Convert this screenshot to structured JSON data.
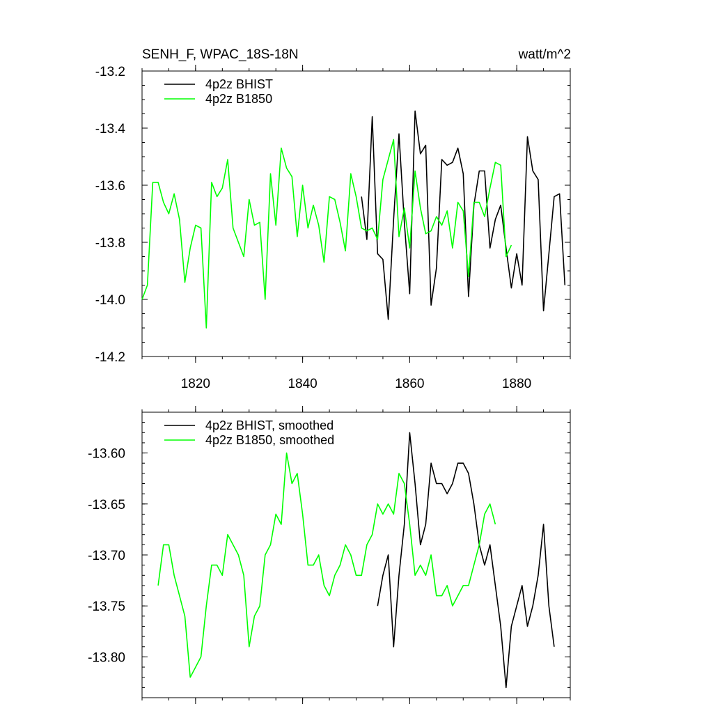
{
  "chart_data": [
    {
      "type": "line",
      "title": "SENH_F, WPAC_18S-18N",
      "units": "watt/m^2",
      "xlim": [
        1810,
        1890
      ],
      "ylim": [
        -14.2,
        -13.2
      ],
      "xticks": [
        1820,
        1840,
        1860,
        1880
      ],
      "xtick_labels": [
        "1820",
        "1840",
        "1860",
        "1880"
      ],
      "yticks": [
        -14.2,
        -14.0,
        -13.8,
        -13.6,
        -13.4,
        -13.2
      ],
      "ytick_labels": [
        "-14.2",
        "-14.0",
        "-13.8",
        "-13.6",
        "-13.4",
        "-13.2"
      ],
      "legend_position": "top-left",
      "series": [
        {
          "name": "4p2z BHIST",
          "color": "#000000",
          "x": [
            1851,
            1852,
            1853,
            1854,
            1855,
            1856,
            1857,
            1858,
            1859,
            1860,
            1861,
            1862,
            1863,
            1864,
            1865,
            1866,
            1867,
            1868,
            1869,
            1870,
            1871,
            1872,
            1873,
            1874,
            1875,
            1876,
            1877,
            1878,
            1879,
            1880,
            1881,
            1882,
            1883,
            1884,
            1885,
            1886,
            1887,
            1888,
            1889
          ],
          "y": [
            -13.64,
            -13.79,
            -13.36,
            -13.84,
            -13.86,
            -14.07,
            -13.72,
            -13.42,
            -13.73,
            -13.98,
            -13.34,
            -13.49,
            -13.46,
            -14.02,
            -13.89,
            -13.51,
            -13.53,
            -13.52,
            -13.47,
            -13.56,
            -13.99,
            -13.67,
            -13.55,
            -13.55,
            -13.82,
            -13.72,
            -13.67,
            -13.82,
            -13.96,
            -13.84,
            -13.95,
            -13.43,
            -13.55,
            -13.58,
            -14.04,
            -13.84,
            -13.64,
            -13.63,
            -13.95
          ]
        },
        {
          "name": "4p2z B1850",
          "color": "#00ff00",
          "x": [
            1810,
            1811,
            1812,
            1813,
            1814,
            1815,
            1816,
            1817,
            1818,
            1819,
            1820,
            1821,
            1822,
            1823,
            1824,
            1825,
            1826,
            1827,
            1828,
            1829,
            1830,
            1831,
            1832,
            1833,
            1834,
            1835,
            1836,
            1837,
            1838,
            1839,
            1840,
            1841,
            1842,
            1843,
            1844,
            1845,
            1846,
            1847,
            1848,
            1849,
            1850,
            1851,
            1852,
            1853,
            1854,
            1855,
            1856,
            1857,
            1858,
            1859,
            1860,
            1861,
            1862,
            1863,
            1864,
            1865,
            1866,
            1867,
            1868,
            1869,
            1870,
            1871,
            1872,
            1873,
            1874,
            1875,
            1876,
            1877,
            1878,
            1879
          ],
          "y": [
            -14.0,
            -13.95,
            -13.59,
            -13.59,
            -13.66,
            -13.7,
            -13.63,
            -13.72,
            -13.94,
            -13.82,
            -13.74,
            -13.75,
            -14.1,
            -13.59,
            -13.64,
            -13.61,
            -13.51,
            -13.75,
            -13.8,
            -13.85,
            -13.65,
            -13.74,
            -13.73,
            -14.0,
            -13.56,
            -13.74,
            -13.47,
            -13.54,
            -13.57,
            -13.78,
            -13.6,
            -13.75,
            -13.67,
            -13.74,
            -13.87,
            -13.64,
            -13.65,
            -13.73,
            -13.83,
            -13.56,
            -13.64,
            -13.75,
            -13.76,
            -13.75,
            -13.79,
            -13.58,
            -13.51,
            -13.44,
            -13.78,
            -13.68,
            -13.82,
            -13.55,
            -13.68,
            -13.77,
            -13.76,
            -13.71,
            -13.74,
            -13.69,
            -13.82,
            -13.66,
            -13.69,
            -13.92,
            -13.66,
            -13.66,
            -13.71,
            -13.61,
            -13.52,
            -13.53,
            -13.85,
            -13.81
          ]
        }
      ]
    },
    {
      "type": "line",
      "title": "",
      "xlim": [
        1810,
        1890
      ],
      "ylim": [
        -13.84,
        -13.56
      ],
      "xticks": [
        1820,
        1840,
        1860,
        1880
      ],
      "yticks": [
        -13.8,
        -13.75,
        -13.7,
        -13.65,
        -13.6
      ],
      "ytick_labels": [
        "-13.80",
        "-13.75",
        "-13.70",
        "-13.65",
        "-13.60"
      ],
      "legend_position": "top-left",
      "series": [
        {
          "name": "4p2z BHIST, smoothed",
          "color": "#000000",
          "x": [
            1854,
            1855,
            1856,
            1857,
            1858,
            1859,
            1860,
            1861,
            1862,
            1863,
            1864,
            1865,
            1866,
            1867,
            1868,
            1869,
            1870,
            1871,
            1872,
            1873,
            1874,
            1875,
            1876,
            1877,
            1878,
            1879,
            1880,
            1881,
            1882,
            1883,
            1884,
            1885,
            1886,
            1887
          ],
          "y": [
            -13.75,
            -13.72,
            -13.7,
            -13.79,
            -13.72,
            -13.67,
            -13.58,
            -13.63,
            -13.69,
            -13.67,
            -13.61,
            -13.63,
            -13.63,
            -13.64,
            -13.63,
            -13.61,
            -13.61,
            -13.62,
            -13.65,
            -13.69,
            -13.71,
            -13.69,
            -13.73,
            -13.77,
            -13.83,
            -13.77,
            -13.75,
            -13.73,
            -13.77,
            -13.75,
            -13.72,
            -13.67,
            -13.75,
            -13.79
          ]
        },
        {
          "name": "4p2z B1850, smoothed",
          "color": "#00ff00",
          "x": [
            1813,
            1814,
            1815,
            1816,
            1817,
            1818,
            1819,
            1820,
            1821,
            1822,
            1823,
            1824,
            1825,
            1826,
            1827,
            1828,
            1829,
            1830,
            1831,
            1832,
            1833,
            1834,
            1835,
            1836,
            1837,
            1838,
            1839,
            1840,
            1841,
            1842,
            1843,
            1844,
            1845,
            1846,
            1847,
            1848,
            1849,
            1850,
            1851,
            1852,
            1853,
            1854,
            1855,
            1856,
            1857,
            1858,
            1859,
            1860,
            1861,
            1862,
            1863,
            1864,
            1865,
            1866,
            1867,
            1868,
            1869,
            1870,
            1871,
            1872,
            1873,
            1874,
            1875,
            1876
          ],
          "y": [
            -13.73,
            -13.69,
            -13.69,
            -13.72,
            -13.74,
            -13.76,
            -13.82,
            -13.81,
            -13.8,
            -13.75,
            -13.71,
            -13.71,
            -13.72,
            -13.68,
            -13.69,
            -13.7,
            -13.72,
            -13.79,
            -13.76,
            -13.75,
            -13.7,
            -13.69,
            -13.66,
            -13.67,
            -13.6,
            -13.63,
            -13.62,
            -13.66,
            -13.71,
            -13.71,
            -13.7,
            -13.73,
            -13.74,
            -13.72,
            -13.71,
            -13.69,
            -13.7,
            -13.72,
            -13.72,
            -13.69,
            -13.68,
            -13.65,
            -13.66,
            -13.65,
            -13.66,
            -13.62,
            -13.63,
            -13.67,
            -13.72,
            -13.71,
            -13.72,
            -13.7,
            -13.74,
            -13.74,
            -13.73,
            -13.75,
            -13.74,
            -13.73,
            -13.73,
            -13.71,
            -13.69,
            -13.66,
            -13.65,
            -13.67
          ]
        }
      ]
    }
  ]
}
